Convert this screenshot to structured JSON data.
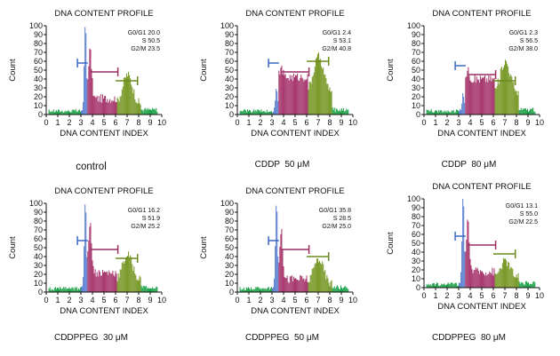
{
  "chart_data": [
    {
      "type": "histogram",
      "title": "DNA CONTENT PROFILE",
      "xlabel": "DNA CONTENT INDEX",
      "ylabel": "Count",
      "xlim": [
        0,
        10
      ],
      "ylim": [
        0,
        100
      ],
      "xticks": [
        "0",
        "1",
        "2",
        "3",
        "4",
        "5",
        "6",
        "7",
        "8",
        "9",
        "10"
      ],
      "yticks": [
        "0",
        "10",
        "20",
        "30",
        "40",
        "50",
        "60",
        "70",
        "80",
        "90",
        "100"
      ],
      "condition": "control",
      "stats": [
        {
          "name": "G0/G1",
          "value": "20.0"
        },
        {
          "name": "S",
          "value": "50.5"
        },
        {
          "name": "G2/M",
          "value": "23.5"
        }
      ],
      "g1_peak": 100,
      "s_level": 18,
      "g2_peak": 45,
      "markers": {
        "g1_y": 58,
        "s_y": 48,
        "g2_y": 38
      }
    },
    {
      "type": "histogram",
      "title": "DNA CONTENT PROFILE",
      "xlabel": "DNA CONTENT INDEX",
      "ylabel": "Count",
      "xlim": [
        0,
        10
      ],
      "ylim": [
        0,
        100
      ],
      "xticks": [
        "0",
        "1",
        "2",
        "3",
        "4",
        "5",
        "6",
        "7",
        "8",
        "9",
        "10"
      ],
      "yticks": [
        "0",
        "10",
        "20",
        "30",
        "40",
        "50",
        "60",
        "70",
        "80",
        "90",
        "100"
      ],
      "condition": "CDDP  50 μM",
      "stats": [
        {
          "name": "G0/G1",
          "value": "2.4"
        },
        {
          "name": "S",
          "value": "53.1"
        },
        {
          "name": "G2/M",
          "value": "40.8"
        }
      ],
      "g1_peak": 28,
      "s_level": 42,
      "g2_peak": 65,
      "markers": {
        "g1_y": 58,
        "s_y": 48,
        "g2_y": 60
      }
    },
    {
      "type": "histogram",
      "title": "DNA CONTENT PROFILE",
      "xlabel": "DNA CONTENT INDEX",
      "ylabel": "Count",
      "xlim": [
        0,
        10
      ],
      "ylim": [
        0,
        100
      ],
      "xticks": [
        "0",
        "1",
        "2",
        "3",
        "4",
        "5",
        "6",
        "7",
        "8",
        "9",
        "10"
      ],
      "yticks": [
        "0",
        "10",
        "20",
        "30",
        "40",
        "50",
        "60",
        "70",
        "80",
        "90",
        "100"
      ],
      "condition": "CDDP  80 μM",
      "stats": [
        {
          "name": "G0/G1",
          "value": "2.3"
        },
        {
          "name": "S",
          "value": "56.5"
        },
        {
          "name": "G2/M",
          "value": "38.0"
        }
      ],
      "g1_peak": 20,
      "s_level": 40,
      "g2_peak": 60,
      "markers": {
        "g1_y": 55,
        "s_y": 45,
        "g2_y": 38
      }
    },
    {
      "type": "histogram",
      "title": "DNA CONTENT PROFILE",
      "xlabel": "DNA CONTENT INDEX",
      "ylabel": "Count",
      "xlim": [
        0,
        10
      ],
      "ylim": [
        0,
        100
      ],
      "xticks": [
        "0",
        "1",
        "2",
        "3",
        "4",
        "5",
        "6",
        "7",
        "8",
        "9",
        "10"
      ],
      "yticks": [
        "0",
        "10",
        "20",
        "30",
        "40",
        "50",
        "60",
        "70",
        "80",
        "90",
        "100"
      ],
      "condition": "CDDPPEG  30 μM",
      "stats": [
        {
          "name": "G0/G1",
          "value": "16.2"
        },
        {
          "name": "S",
          "value": "51.9"
        },
        {
          "name": "G2/M",
          "value": "25.2"
        }
      ],
      "g1_peak": 100,
      "s_level": 22,
      "g2_peak": 42,
      "markers": {
        "g1_y": 58,
        "s_y": 48,
        "g2_y": 38
      }
    },
    {
      "type": "histogram",
      "title": "DNA CONTENT PROFILE",
      "xlabel": "DNA CONTENT INDEX",
      "ylabel": "Count",
      "xlim": [
        0,
        10
      ],
      "ylim": [
        0,
        100
      ],
      "xticks": [
        "0",
        "1",
        "2",
        "3",
        "4",
        "5",
        "6",
        "7",
        "8",
        "9",
        "10"
      ],
      "yticks": [
        "0",
        "10",
        "20",
        "30",
        "40",
        "50",
        "60",
        "70",
        "80",
        "90",
        "100"
      ],
      "condition": "CDDPPEG  50 μM",
      "stats": [
        {
          "name": "G0/G1",
          "value": "35.8"
        },
        {
          "name": "S",
          "value": "28.5"
        },
        {
          "name": "G2/M",
          "value": "25.0"
        }
      ],
      "g1_peak": 100,
      "s_level": 15,
      "g2_peak": 38,
      "markers": {
        "g1_y": 58,
        "s_y": 48,
        "g2_y": 40
      }
    },
    {
      "type": "histogram",
      "title": "DNA CONTENT PROFILE",
      "xlabel": "DNA CONTENT INDEX",
      "ylabel": "Count",
      "xlim": [
        0,
        10
      ],
      "ylim": [
        0,
        100
      ],
      "xticks": [
        "0",
        "1",
        "2",
        "3",
        "4",
        "5",
        "6",
        "7",
        "8",
        "9",
        "10"
      ],
      "yticks": [
        "0",
        "10",
        "20",
        "30",
        "40",
        "50",
        "60",
        "70",
        "80",
        "90",
        "100"
      ],
      "condition": "CDDPPEG  80 μM",
      "stats": [
        {
          "name": "G0/G1",
          "value": "13.1"
        },
        {
          "name": "S",
          "value": "55.0"
        },
        {
          "name": "G2/M",
          "value": "22.5"
        }
      ],
      "g1_peak": 100,
      "s_level": 18,
      "g2_peak": 30,
      "markers": {
        "g1_y": 58,
        "s_y": 48,
        "g2_y": 38
      }
    }
  ],
  "colors": {
    "g1": "#5b7fd1",
    "s": "#a83a6f",
    "g2": "#7a9a2a",
    "debris": "#1fa34a",
    "marker_g1": "#3a68c4",
    "marker_s": "#9b2f63",
    "marker_g2": "#6b8a1e",
    "axis": "#111111"
  }
}
